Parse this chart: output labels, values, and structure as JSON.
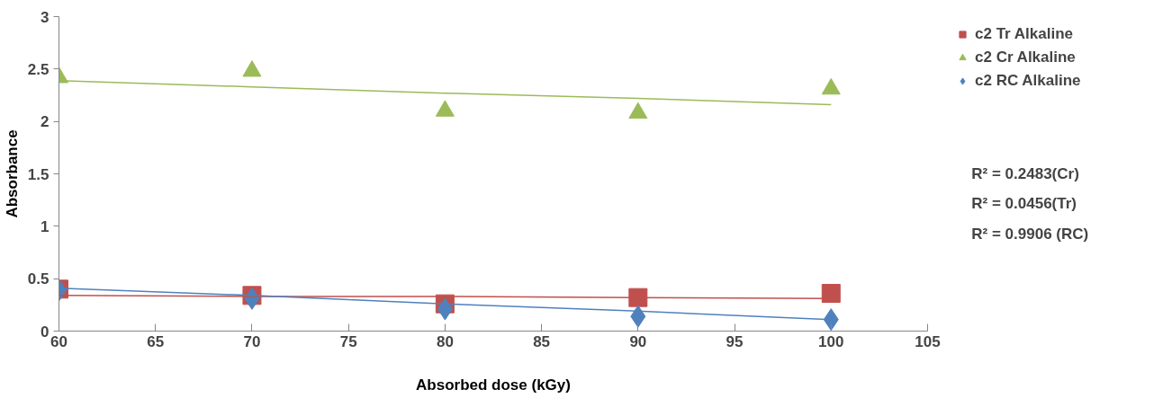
{
  "chart_data": {
    "type": "scatter",
    "xlabel": "Absorbed dose (kGy)",
    "ylabel": "Absorbance",
    "x": [
      60,
      70,
      80,
      90,
      100
    ],
    "series": [
      {
        "name": "c2 Tr Alkaline",
        "color": "#c0504d",
        "marker": "square",
        "values": [
          0.4,
          0.34,
          0.26,
          0.32,
          0.36
        ]
      },
      {
        "name": "c2 Cr Alkaline",
        "color": "#9bbb59",
        "marker": "triangle",
        "values": [
          2.42,
          2.48,
          2.1,
          2.08,
          2.31
        ]
      },
      {
        "name": "c2 RC Alkaline",
        "color": "#4f81bd",
        "marker": "diamond",
        "values": [
          0.39,
          0.31,
          0.21,
          0.14,
          0.11
        ]
      },
      {
        "type": "line",
        "color": "#c0504d",
        "x": [
          60,
          70,
          80,
          90,
          100
        ],
        "values": [
          0.34,
          0.33,
          0.33,
          0.32,
          0.31
        ]
      },
      {
        "type": "line",
        "color": "#9bbb59",
        "x": [
          60,
          70,
          80,
          90,
          100
        ],
        "values": [
          2.39,
          2.33,
          2.27,
          2.22,
          2.16
        ]
      },
      {
        "type": "line",
        "color": "#4f81bd",
        "x": [
          60,
          70,
          80,
          90,
          100
        ],
        "values": [
          0.41,
          0.34,
          0.26,
          0.19,
          0.11
        ]
      }
    ],
    "annotations": [
      "R² = 0.2483(Cr)",
      "R² = 0.0456(Tr)",
      "R² = 0.9906 (RC)"
    ],
    "xlim": [
      60,
      105
    ],
    "xticks": [
      60,
      65,
      70,
      75,
      80,
      85,
      90,
      95,
      100,
      105
    ],
    "ylim": [
      0,
      3
    ],
    "yticks": [
      0,
      0.5,
      1,
      1.5,
      2,
      2.5,
      3
    ],
    "grid": false,
    "legend": "right"
  }
}
